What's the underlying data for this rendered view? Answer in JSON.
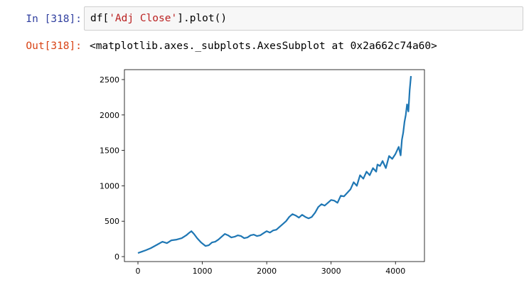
{
  "cell": {
    "input_prompt": "In [318]:",
    "code_prefix": "df[",
    "code_string": "'Adj Close'",
    "code_suffix": "].plot()",
    "output_prompt": "Out[318]:",
    "output_text": "<matplotlib.axes._subplots.AxesSubplot at 0x2a662c74a60>"
  },
  "chart_data": {
    "type": "line",
    "title": "",
    "xlabel": "",
    "ylabel": "",
    "xlim": [
      -210,
      4450
    ],
    "ylim": [
      -70,
      2640
    ],
    "xticks": [
      0,
      1000,
      2000,
      3000,
      4000
    ],
    "yticks": [
      0,
      500,
      1000,
      1500,
      2000,
      2500
    ],
    "grid": false,
    "color": "#1f77b4",
    "series": [
      {
        "x": [
          0,
          60,
          120,
          200,
          300,
          380,
          450,
          520,
          600,
          680,
          750,
          800,
          830,
          870,
          920,
          980,
          1050,
          1100,
          1150,
          1200,
          1250,
          1300,
          1350,
          1400,
          1450,
          1500,
          1550,
          1600,
          1650,
          1700,
          1750,
          1800,
          1850,
          1900,
          1950,
          2000,
          2050,
          2100,
          2150,
          2200,
          2250,
          2300,
          2350,
          2400,
          2450,
          2500,
          2550,
          2600,
          2650,
          2700,
          2750,
          2800,
          2850,
          2900,
          2950,
          3000,
          3050,
          3100,
          3150,
          3200,
          3250,
          3300,
          3350,
          3400,
          3450,
          3500,
          3550,
          3600,
          3650,
          3700,
          3720,
          3760,
          3800,
          3850,
          3900,
          3950,
          4000,
          4050,
          4080,
          4100,
          4120,
          4140,
          4160,
          4180,
          4200,
          4220,
          4240
        ],
        "y": [
          50,
          70,
          90,
          120,
          170,
          210,
          190,
          230,
          240,
          260,
          300,
          340,
          360,
          320,
          260,
          200,
          150,
          160,
          200,
          210,
          240,
          280,
          320,
          300,
          270,
          280,
          300,
          290,
          260,
          270,
          300,
          310,
          290,
          300,
          330,
          360,
          340,
          370,
          380,
          420,
          460,
          500,
          560,
          600,
          580,
          550,
          590,
          560,
          540,
          560,
          620,
          700,
          740,
          720,
          760,
          800,
          790,
          760,
          860,
          850,
          900,
          950,
          1050,
          1000,
          1150,
          1100,
          1200,
          1150,
          1250,
          1200,
          1300,
          1280,
          1350,
          1250,
          1420,
          1380,
          1450,
          1550,
          1430,
          1650,
          1750,
          1900,
          2000,
          2150,
          2050,
          2350,
          2550
        ]
      }
    ]
  }
}
